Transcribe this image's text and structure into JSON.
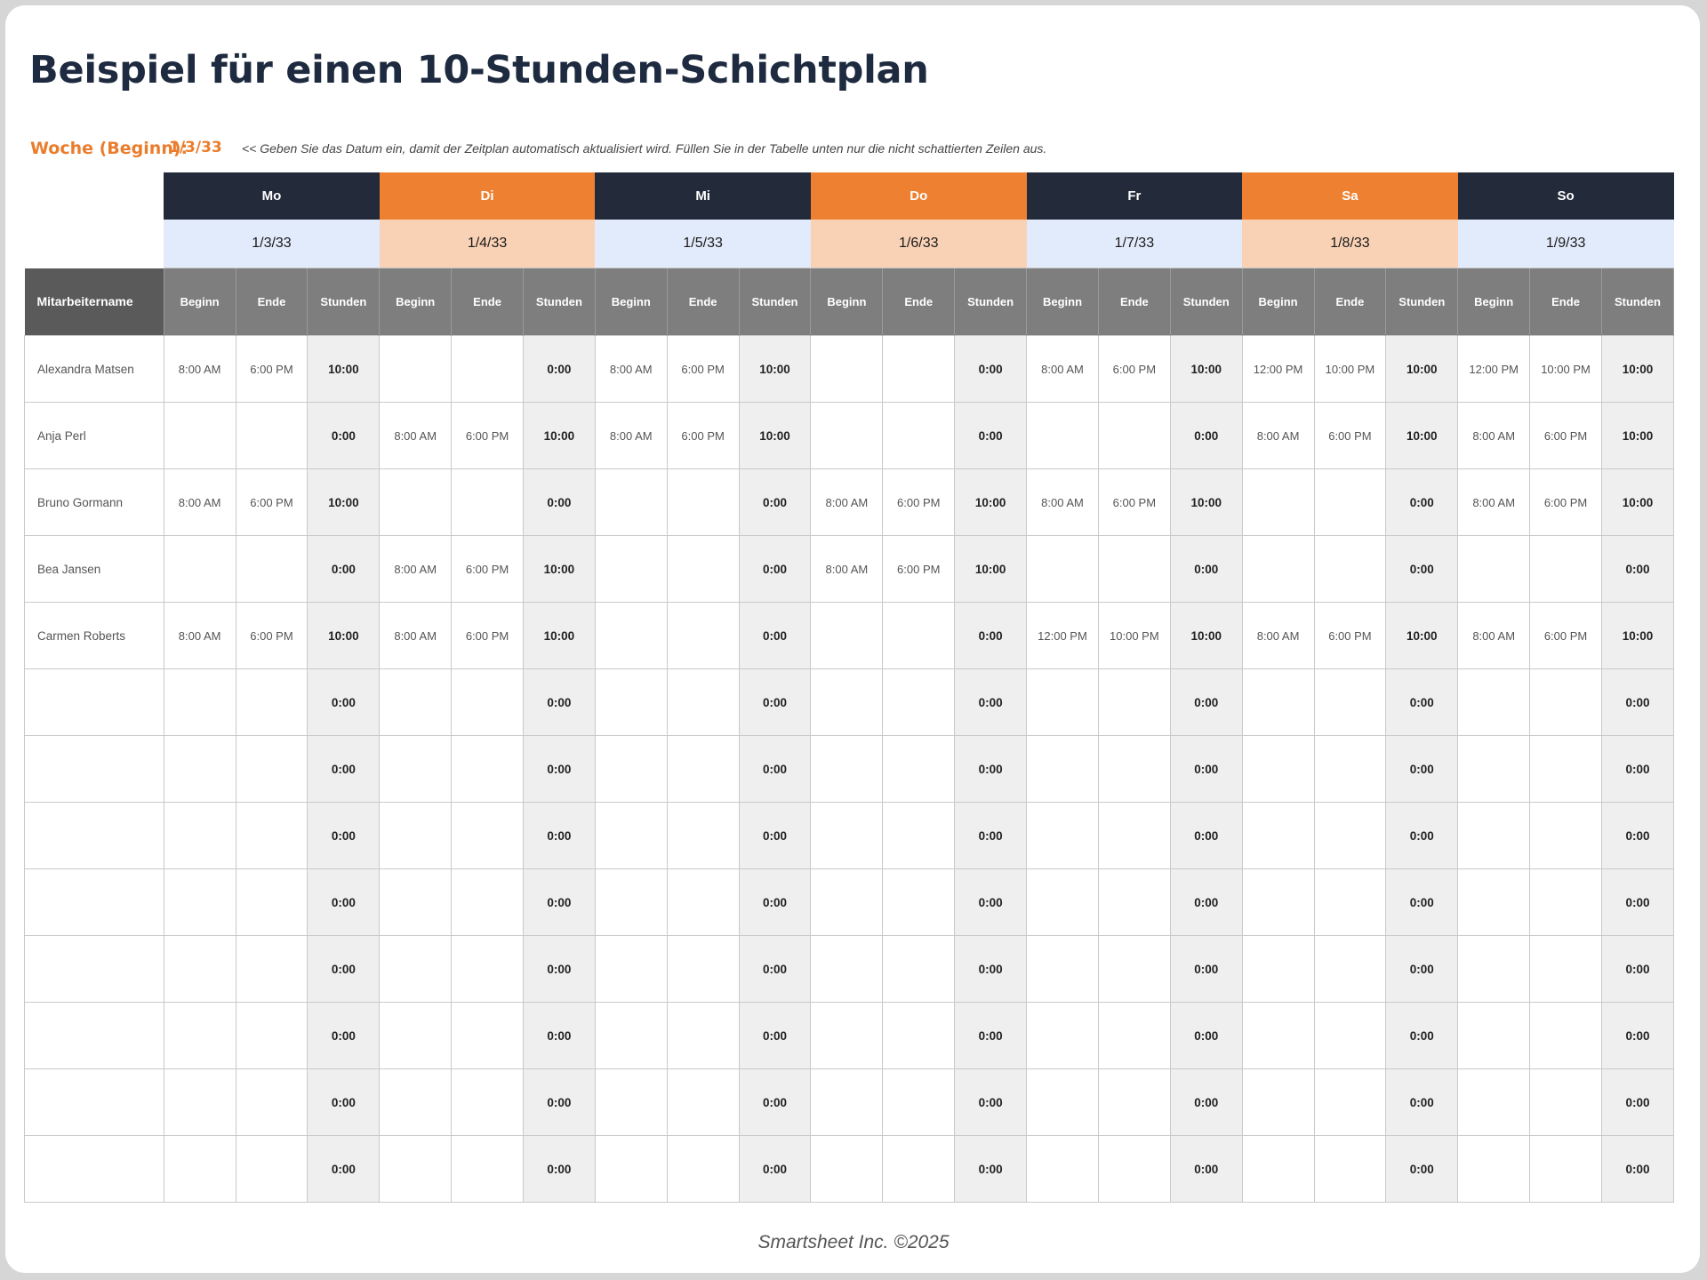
{
  "title": "Beispiel für einen 10-Stunden-Schichtplan",
  "week": {
    "label": "Woche (Beginn):",
    "date": "1/3/33",
    "note": "<< Geben Sie das Datum ein, damit der Zeitplan automatisch aktualisiert wird. Füllen Sie in der Tabelle unten nur die nicht schattierten Zeilen aus."
  },
  "days": [
    {
      "name": "Mo",
      "date": "1/3/33",
      "style": "dark",
      "date_style": "lblue"
    },
    {
      "name": "Di",
      "date": "1/4/33",
      "style": "orange",
      "date_style": "peach"
    },
    {
      "name": "Mi",
      "date": "1/5/33",
      "style": "dark",
      "date_style": "lblue"
    },
    {
      "name": "Do",
      "date": "1/6/33",
      "style": "orange",
      "date_style": "peach"
    },
    {
      "name": "Fr",
      "date": "1/7/33",
      "style": "dark",
      "date_style": "lblue"
    },
    {
      "name": "Sa",
      "date": "1/8/33",
      "style": "orange",
      "date_style": "peach"
    },
    {
      "name": "So",
      "date": "1/9/33",
      "style": "dark",
      "date_style": "lblue"
    }
  ],
  "colors": {
    "dark_header": "#232a3a",
    "orange_header": "#ee8031",
    "light_blue": "#e2ebfb",
    "peach": "#f9d2b6",
    "accent_text": "#ea7d2d"
  },
  "columns": {
    "name": "Mitarbeitername",
    "start": "Beginn",
    "end": "Ende",
    "hours": "Stunden"
  },
  "employees": [
    {
      "name": "Alexandra Matsen",
      "shifts": [
        {
          "start": "8:00 AM",
          "end": "6:00 PM",
          "hours": "10:00"
        },
        {
          "start": "",
          "end": "",
          "hours": "0:00"
        },
        {
          "start": "8:00 AM",
          "end": "6:00 PM",
          "hours": "10:00"
        },
        {
          "start": "",
          "end": "",
          "hours": "0:00"
        },
        {
          "start": "8:00 AM",
          "end": "6:00 PM",
          "hours": "10:00"
        },
        {
          "start": "12:00 PM",
          "end": "10:00 PM",
          "hours": "10:00"
        },
        {
          "start": "12:00 PM",
          "end": "10:00 PM",
          "hours": "10:00"
        }
      ]
    },
    {
      "name": "Anja Perl",
      "shifts": [
        {
          "start": "",
          "end": "",
          "hours": "0:00"
        },
        {
          "start": "8:00 AM",
          "end": "6:00 PM",
          "hours": "10:00"
        },
        {
          "start": "8:00 AM",
          "end": "6:00 PM",
          "hours": "10:00"
        },
        {
          "start": "",
          "end": "",
          "hours": "0:00"
        },
        {
          "start": "",
          "end": "",
          "hours": "0:00"
        },
        {
          "start": "8:00 AM",
          "end": "6:00 PM",
          "hours": "10:00"
        },
        {
          "start": "8:00 AM",
          "end": "6:00 PM",
          "hours": "10:00"
        }
      ]
    },
    {
      "name": "Bruno Gormann",
      "shifts": [
        {
          "start": "8:00 AM",
          "end": "6:00 PM",
          "hours": "10:00"
        },
        {
          "start": "",
          "end": "",
          "hours": "0:00"
        },
        {
          "start": "",
          "end": "",
          "hours": "0:00"
        },
        {
          "start": "8:00 AM",
          "end": "6:00 PM",
          "hours": "10:00"
        },
        {
          "start": "8:00 AM",
          "end": "6:00 PM",
          "hours": "10:00"
        },
        {
          "start": "",
          "end": "",
          "hours": "0:00"
        },
        {
          "start": "8:00 AM",
          "end": "6:00 PM",
          "hours": "10:00"
        }
      ]
    },
    {
      "name": "Bea Jansen",
      "shifts": [
        {
          "start": "",
          "end": "",
          "hours": "0:00"
        },
        {
          "start": "8:00 AM",
          "end": "6:00 PM",
          "hours": "10:00"
        },
        {
          "start": "",
          "end": "",
          "hours": "0:00"
        },
        {
          "start": "8:00 AM",
          "end": "6:00 PM",
          "hours": "10:00"
        },
        {
          "start": "",
          "end": "",
          "hours": "0:00"
        },
        {
          "start": "",
          "end": "",
          "hours": "0:00"
        },
        {
          "start": "",
          "end": "",
          "hours": "0:00"
        }
      ]
    },
    {
      "name": "Carmen Roberts",
      "shifts": [
        {
          "start": "8:00 AM",
          "end": "6:00 PM",
          "hours": "10:00"
        },
        {
          "start": "8:00 AM",
          "end": "6:00 PM",
          "hours": "10:00"
        },
        {
          "start": "",
          "end": "",
          "hours": "0:00"
        },
        {
          "start": "",
          "end": "",
          "hours": "0:00"
        },
        {
          "start": "12:00 PM",
          "end": "10:00 PM",
          "hours": "10:00"
        },
        {
          "start": "8:00 AM",
          "end": "6:00 PM",
          "hours": "10:00"
        },
        {
          "start": "8:00 AM",
          "end": "6:00 PM",
          "hours": "10:00"
        }
      ]
    },
    {
      "name": "",
      "shifts": [
        {
          "start": "",
          "end": "",
          "hours": "0:00"
        },
        {
          "start": "",
          "end": "",
          "hours": "0:00"
        },
        {
          "start": "",
          "end": "",
          "hours": "0:00"
        },
        {
          "start": "",
          "end": "",
          "hours": "0:00"
        },
        {
          "start": "",
          "end": "",
          "hours": "0:00"
        },
        {
          "start": "",
          "end": "",
          "hours": "0:00"
        },
        {
          "start": "",
          "end": "",
          "hours": "0:00"
        }
      ]
    },
    {
      "name": "",
      "shifts": [
        {
          "start": "",
          "end": "",
          "hours": "0:00"
        },
        {
          "start": "",
          "end": "",
          "hours": "0:00"
        },
        {
          "start": "",
          "end": "",
          "hours": "0:00"
        },
        {
          "start": "",
          "end": "",
          "hours": "0:00"
        },
        {
          "start": "",
          "end": "",
          "hours": "0:00"
        },
        {
          "start": "",
          "end": "",
          "hours": "0:00"
        },
        {
          "start": "",
          "end": "",
          "hours": "0:00"
        }
      ]
    },
    {
      "name": "",
      "shifts": [
        {
          "start": "",
          "end": "",
          "hours": "0:00"
        },
        {
          "start": "",
          "end": "",
          "hours": "0:00"
        },
        {
          "start": "",
          "end": "",
          "hours": "0:00"
        },
        {
          "start": "",
          "end": "",
          "hours": "0:00"
        },
        {
          "start": "",
          "end": "",
          "hours": "0:00"
        },
        {
          "start": "",
          "end": "",
          "hours": "0:00"
        },
        {
          "start": "",
          "end": "",
          "hours": "0:00"
        }
      ]
    },
    {
      "name": "",
      "shifts": [
        {
          "start": "",
          "end": "",
          "hours": "0:00"
        },
        {
          "start": "",
          "end": "",
          "hours": "0:00"
        },
        {
          "start": "",
          "end": "",
          "hours": "0:00"
        },
        {
          "start": "",
          "end": "",
          "hours": "0:00"
        },
        {
          "start": "",
          "end": "",
          "hours": "0:00"
        },
        {
          "start": "",
          "end": "",
          "hours": "0:00"
        },
        {
          "start": "",
          "end": "",
          "hours": "0:00"
        }
      ]
    },
    {
      "name": "",
      "shifts": [
        {
          "start": "",
          "end": "",
          "hours": "0:00"
        },
        {
          "start": "",
          "end": "",
          "hours": "0:00"
        },
        {
          "start": "",
          "end": "",
          "hours": "0:00"
        },
        {
          "start": "",
          "end": "",
          "hours": "0:00"
        },
        {
          "start": "",
          "end": "",
          "hours": "0:00"
        },
        {
          "start": "",
          "end": "",
          "hours": "0:00"
        },
        {
          "start": "",
          "end": "",
          "hours": "0:00"
        }
      ]
    },
    {
      "name": "",
      "shifts": [
        {
          "start": "",
          "end": "",
          "hours": "0:00"
        },
        {
          "start": "",
          "end": "",
          "hours": "0:00"
        },
        {
          "start": "",
          "end": "",
          "hours": "0:00"
        },
        {
          "start": "",
          "end": "",
          "hours": "0:00"
        },
        {
          "start": "",
          "end": "",
          "hours": "0:00"
        },
        {
          "start": "",
          "end": "",
          "hours": "0:00"
        },
        {
          "start": "",
          "end": "",
          "hours": "0:00"
        }
      ]
    },
    {
      "name": "",
      "shifts": [
        {
          "start": "",
          "end": "",
          "hours": "0:00"
        },
        {
          "start": "",
          "end": "",
          "hours": "0:00"
        },
        {
          "start": "",
          "end": "",
          "hours": "0:00"
        },
        {
          "start": "",
          "end": "",
          "hours": "0:00"
        },
        {
          "start": "",
          "end": "",
          "hours": "0:00"
        },
        {
          "start": "",
          "end": "",
          "hours": "0:00"
        },
        {
          "start": "",
          "end": "",
          "hours": "0:00"
        }
      ]
    },
    {
      "name": "",
      "shifts": [
        {
          "start": "",
          "end": "",
          "hours": "0:00"
        },
        {
          "start": "",
          "end": "",
          "hours": "0:00"
        },
        {
          "start": "",
          "end": "",
          "hours": "0:00"
        },
        {
          "start": "",
          "end": "",
          "hours": "0:00"
        },
        {
          "start": "",
          "end": "",
          "hours": "0:00"
        },
        {
          "start": "",
          "end": "",
          "hours": "0:00"
        },
        {
          "start": "",
          "end": "",
          "hours": "0:00"
        }
      ]
    }
  ],
  "footer": "Smartsheet Inc. ©2025"
}
